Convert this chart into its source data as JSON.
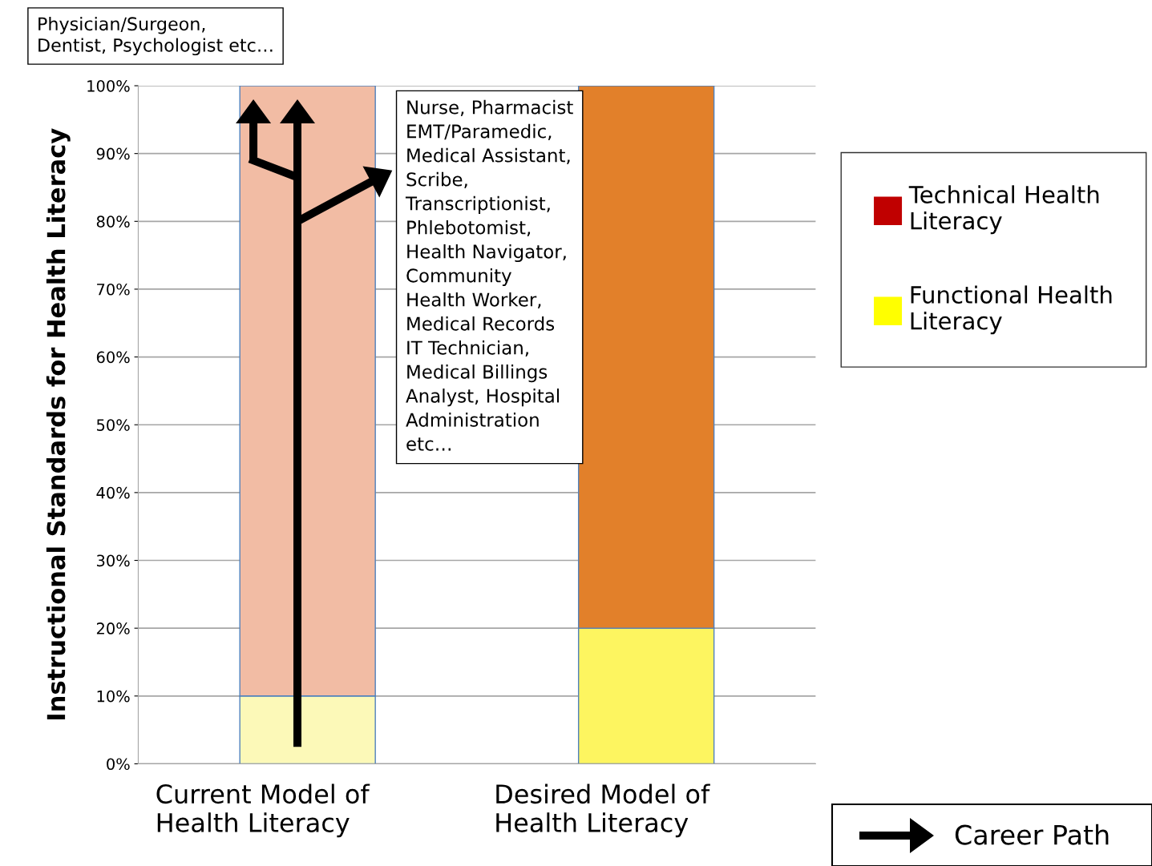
{
  "chart_data": {
    "type": "bar",
    "stacked": true,
    "ylabel": "Instructional Standards for Health Literacy",
    "categories": [
      "Current Model of\nHealth Literacy",
      "Desired Model of\nHealth Literacy"
    ],
    "series": [
      {
        "name": "Functional Health Literacy",
        "color": "#ffff00",
        "colors": [
          "#fcf9b8",
          "#fdf560"
        ],
        "values": [
          10,
          20
        ]
      },
      {
        "name": "Technical Health Literacy",
        "color": "#c00000",
        "colors": [
          "#f2bca4",
          "#e2802a"
        ],
        "values": [
          90,
          80
        ]
      }
    ],
    "ylim": [
      0,
      100
    ],
    "yticks": [
      {
        "value": 0,
        "label": "0%"
      },
      {
        "value": 10,
        "label": "10%"
      },
      {
        "value": 20,
        "label": "20%"
      },
      {
        "value": 30,
        "label": "30%"
      },
      {
        "value": 40,
        "label": "40%"
      },
      {
        "value": 50,
        "label": "50%"
      },
      {
        "value": 60,
        "label": "60%"
      },
      {
        "value": 70,
        "label": "70%"
      },
      {
        "value": 80,
        "label": "80%"
      },
      {
        "value": 90,
        "label": "90%"
      },
      {
        "value": 100,
        "label": "100%"
      }
    ],
    "grid": "y",
    "legend": "right",
    "annotations": [
      "Physician/Surgeon,\nDentist, Psychologist etc…",
      "Nurse, Pharmacist\nEMT/Paramedic,\nMedical Assistant,\nScribe,\nTranscriptionist,\nPhlebotomist,\nHealth Navigator,\nCommunity\nHealth Worker,\nMedical Records\nIT Technician,\nMedical Billings\nAnalyst, Hospital\nAdministration\netc…",
      "Career Path"
    ]
  }
}
